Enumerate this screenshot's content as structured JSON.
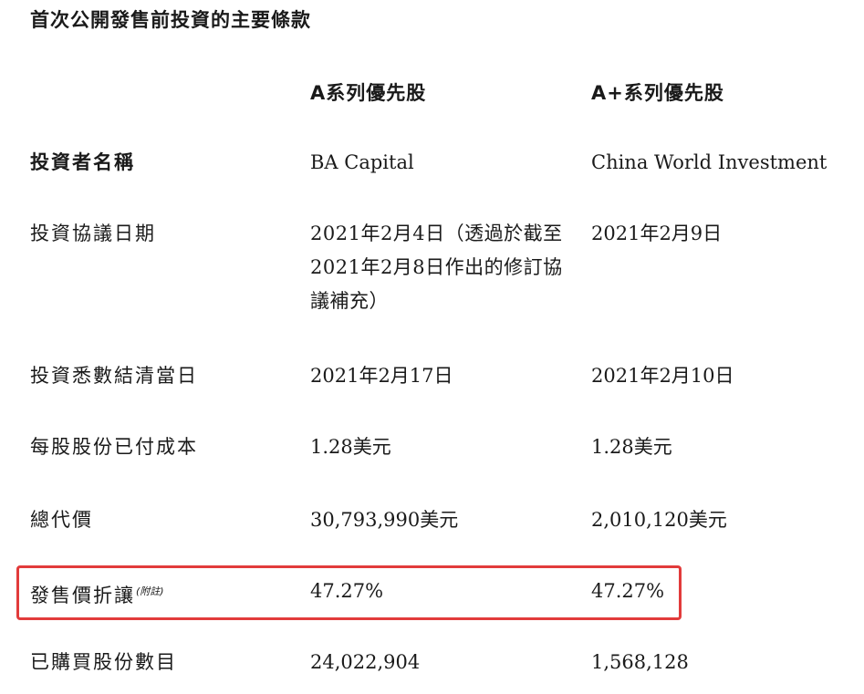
{
  "title": "首次公開發售前投資的主要條款",
  "columns": {
    "series_a": "A系列優先股",
    "series_a_plus": "A+系列優先股"
  },
  "rows": [
    {
      "label": "投資者名稱",
      "series_a": "BA Capital",
      "series_a_plus": "China World Investment"
    },
    {
      "label": "投資協議日期",
      "series_a": "2021年2月4日（透過於截至2021年2月8日作出的修訂協議補充）",
      "series_a_plus": "2021年2月9日"
    },
    {
      "label": "投資悉數結清當日",
      "series_a": "2021年2月17日",
      "series_a_plus": "2021年2月10日"
    },
    {
      "label": "每股股份已付成本",
      "series_a": "1.28美元",
      "series_a_plus": "1.28美元"
    },
    {
      "label": "總代價",
      "series_a": "30,793,990美元",
      "series_a_plus": "2,010,120美元"
    },
    {
      "label": "發售價折讓",
      "label_note": "(附註)",
      "series_a": "47.27%",
      "series_a_plus": "47.27%"
    },
    {
      "label": "已購買股份數目",
      "series_a": "24,022,904",
      "series_a_plus": "1,568,128"
    }
  ],
  "highlight_color": "#e23b3b"
}
